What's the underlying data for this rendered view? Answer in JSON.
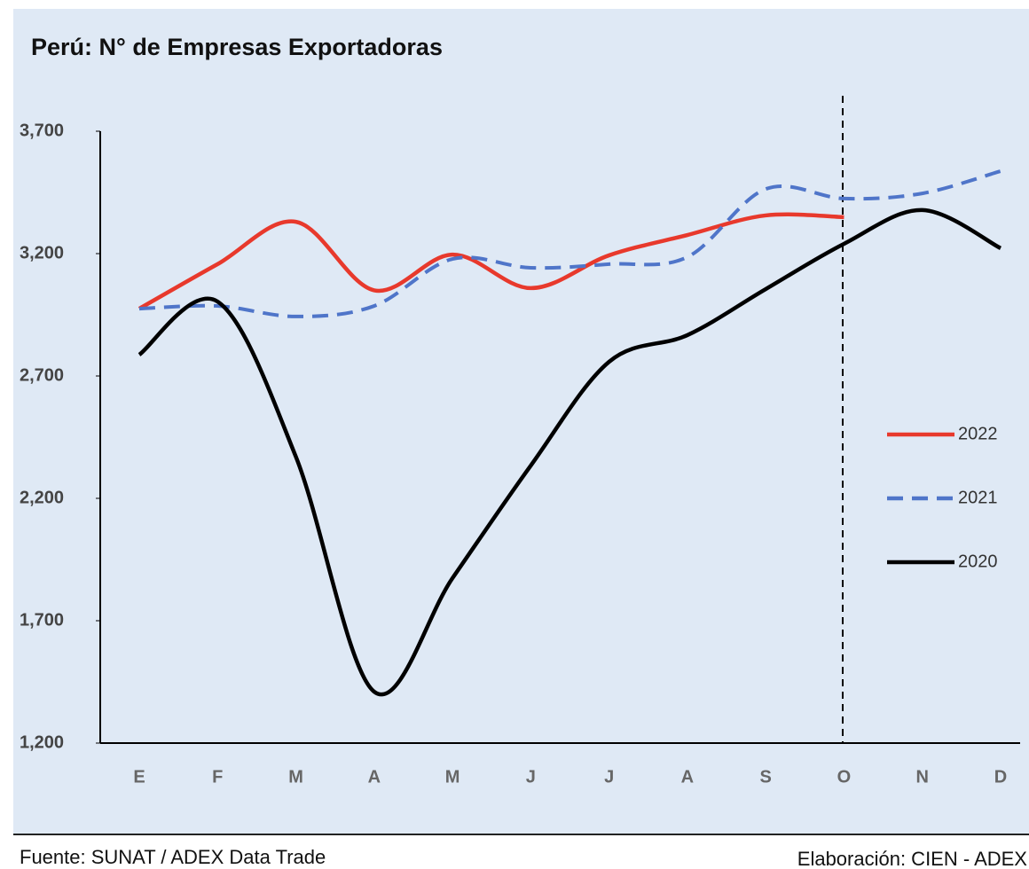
{
  "chart_data": {
    "type": "line",
    "title": "Perú: N° de Empresas Exportadoras",
    "categories": [
      "E",
      "F",
      "M",
      "A",
      "M",
      "J",
      "J",
      "A",
      "S",
      "O",
      "N",
      "D"
    ],
    "series": [
      {
        "name": "2022",
        "color": "#e8392c",
        "dash": false,
        "values": [
          2975,
          3157,
          3330,
          3050,
          3196,
          3059,
          3193,
          3276,
          3356,
          3349,
          null,
          null
        ]
      },
      {
        "name": "2021",
        "color": "#4f75c9",
        "dash": true,
        "values": [
          2975,
          2986,
          2943,
          2986,
          3178,
          3142,
          3157,
          3186,
          3464,
          3425,
          3446,
          3537
        ]
      },
      {
        "name": "2020",
        "color": "#000000",
        "dash": false,
        "values": [
          2787,
          3004,
          2370,
          1410,
          1874,
          2334,
          2758,
          2867,
          3055,
          3240,
          3378,
          3222
        ]
      }
    ],
    "ylim": [
      1200,
      3700
    ],
    "yticks": [
      {
        "value": 1200,
        "label": "1,200"
      },
      {
        "value": 1700,
        "label": "1,700"
      },
      {
        "value": 2200,
        "label": "2,200"
      },
      {
        "value": 2700,
        "label": "2,700"
      },
      {
        "value": 3200,
        "label": "3,200"
      },
      {
        "value": 3700,
        "label": "3,700"
      }
    ],
    "source": "Fuente: SUNAT / ADEX Data Trade",
    "credit": "Elaboración: CIEN - ADEX"
  }
}
